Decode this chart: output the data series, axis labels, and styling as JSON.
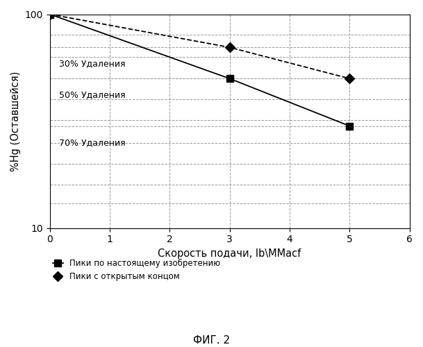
{
  "xlabel": "Скорость подачи, lb\\MMacf",
  "ylabel": "%Hg (Оставшейся)",
  "xlim": [
    0,
    6
  ],
  "ylim": [
    10,
    100
  ],
  "xticks": [
    0,
    1,
    2,
    3,
    4,
    5,
    6
  ],
  "series_squares": {
    "x": [
      0,
      3,
      5
    ],
    "y": [
      100,
      50,
      30
    ],
    "color": "#000000",
    "linestyle": "-",
    "marker": "s",
    "markersize": 7,
    "label": "Пики по настоящему изобретению"
  },
  "series_diamonds": {
    "x": [
      0,
      3,
      5
    ],
    "y": [
      100,
      70,
      50
    ],
    "color": "#000000",
    "linestyle": "--",
    "marker": "D",
    "markersize": 7,
    "label": "Пики с открытым концом"
  },
  "removal_lines": [
    {
      "y": 70,
      "label": "30% Удаления"
    },
    {
      "y": 50,
      "label": "50% Удаления"
    },
    {
      "y": 30,
      "label": "70% Удаления"
    }
  ],
  "fig_caption": "ФИГ. 2",
  "background_color": "#ffffff",
  "grid_color": "#999999"
}
